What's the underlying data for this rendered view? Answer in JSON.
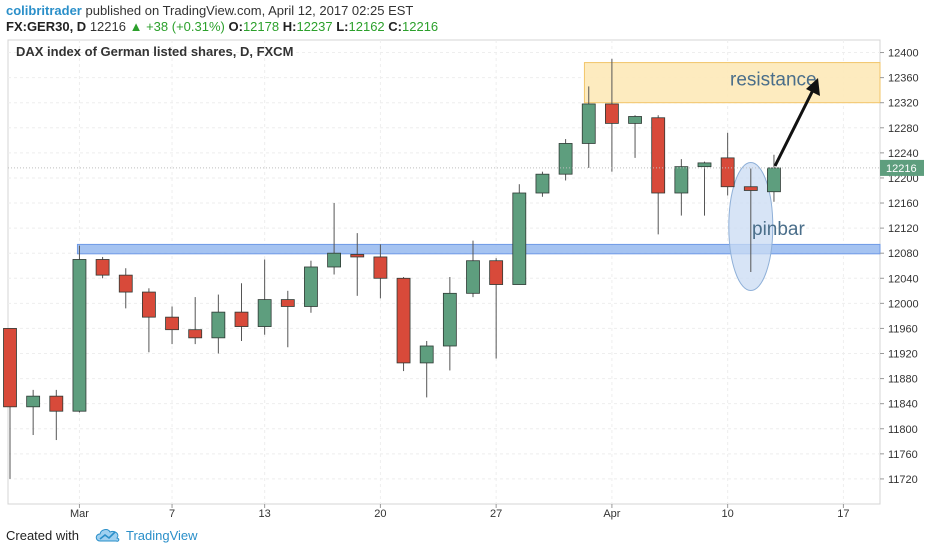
{
  "header": {
    "author": "colibritrader",
    "published": "published on TradingView.com, April 12, 2017 02:25 EST",
    "symbol": "FX:GER30, D",
    "last": "12216",
    "change": "+38 (+0.31%)",
    "o_label": "O:",
    "o_value": "12178",
    "h_label": "H:",
    "h_value": "12237",
    "l_label": "L:",
    "l_value": "12162",
    "c_label": "C:",
    "c_value": "12216"
  },
  "footer": {
    "created_with": "Created with",
    "brand": "TradingView"
  },
  "icons": {
    "change_arrow": "up-triangle-icon",
    "logo": "tradingview-cloud-icon",
    "annotation_arrow": "arrow-icon"
  },
  "colors": {
    "up": "#5e9e7e",
    "down": "#d84a3a",
    "wick": "#555555",
    "resistance_zone": "#fde9b8",
    "support_zone": "#9bbcf0",
    "pinbar_ellipse": "#c9dbf3",
    "price_tag": "#5e9e7e"
  },
  "chart_data": {
    "type": "candlestick",
    "title": "DAX index of German listed shares, D, FXCM",
    "ylim": [
      11680,
      12420
    ],
    "y_ticks": [
      11720,
      11760,
      11800,
      11840,
      11880,
      11920,
      11960,
      12000,
      12040,
      12080,
      12120,
      12160,
      12200,
      12240,
      12280,
      12320,
      12360,
      12400
    ],
    "y_tick_labels": [
      "11720",
      "11760",
      "11800",
      "11840",
      "11880",
      "11920",
      "11960",
      "12000",
      "12040",
      "12080",
      "12120",
      "12160",
      "12200",
      "12240",
      "12280",
      "12320",
      "12360",
      "12400"
    ],
    "x_ticks": [
      {
        "label": "Mar",
        "bar": 3
      },
      {
        "label": "7",
        "bar": 7
      },
      {
        "label": "13",
        "bar": 11
      },
      {
        "label": "20",
        "bar": 16
      },
      {
        "label": "27",
        "bar": 21
      },
      {
        "label": "Apr",
        "bar": 26
      },
      {
        "label": "10",
        "bar": 31
      },
      {
        "label": "17",
        "bar": 36
      }
    ],
    "grid": true,
    "last_price": 12216,
    "last_price_label": "12216",
    "candles": [
      {
        "o": 11960,
        "h": 11960,
        "l": 11720,
        "c": 11835
      },
      {
        "o": 11835,
        "h": 11862,
        "l": 11790,
        "c": 11852
      },
      {
        "o": 11852,
        "h": 11862,
        "l": 11782,
        "c": 11828
      },
      {
        "o": 11828,
        "h": 12092,
        "l": 11826,
        "c": 12070
      },
      {
        "o": 12070,
        "h": 12074,
        "l": 12040,
        "c": 12045
      },
      {
        "o": 12045,
        "h": 12056,
        "l": 11992,
        "c": 12018
      },
      {
        "o": 12018,
        "h": 12024,
        "l": 11922,
        "c": 11978
      },
      {
        "o": 11978,
        "h": 11995,
        "l": 11935,
        "c": 11958
      },
      {
        "o": 11958,
        "h": 12010,
        "l": 11935,
        "c": 11945
      },
      {
        "o": 11945,
        "h": 12014,
        "l": 11920,
        "c": 11986
      },
      {
        "o": 11986,
        "h": 12032,
        "l": 11940,
        "c": 11963
      },
      {
        "o": 11963,
        "h": 12070,
        "l": 11950,
        "c": 12006
      },
      {
        "o": 12006,
        "h": 12020,
        "l": 11930,
        "c": 11995
      },
      {
        "o": 11995,
        "h": 12068,
        "l": 11985,
        "c": 12058
      },
      {
        "o": 12058,
        "h": 12160,
        "l": 12046,
        "c": 12080
      },
      {
        "o": 12078,
        "h": 12112,
        "l": 12012,
        "c": 12074
      },
      {
        "o": 12074,
        "h": 12094,
        "l": 12008,
        "c": 12040
      },
      {
        "o": 12040,
        "h": 12042,
        "l": 11892,
        "c": 11905
      },
      {
        "o": 11905,
        "h": 11940,
        "l": 11850,
        "c": 11932
      },
      {
        "o": 11932,
        "h": 12042,
        "l": 11893,
        "c": 12016
      },
      {
        "o": 12016,
        "h": 12100,
        "l": 12010,
        "c": 12068
      },
      {
        "o": 12068,
        "h": 12072,
        "l": 11912,
        "c": 12030
      },
      {
        "o": 12030,
        "h": 12190,
        "l": 12030,
        "c": 12176
      },
      {
        "o": 12176,
        "h": 12210,
        "l": 12170,
        "c": 12206
      },
      {
        "o": 12206,
        "h": 12262,
        "l": 12196,
        "c": 12255
      },
      {
        "o": 12255,
        "h": 12346,
        "l": 12216,
        "c": 12318
      },
      {
        "o": 12318,
        "h": 12390,
        "l": 12210,
        "c": 12287
      },
      {
        "o": 12287,
        "h": 12300,
        "l": 12232,
        "c": 12298
      },
      {
        "o": 12296,
        "h": 12300,
        "l": 12110,
        "c": 12176
      },
      {
        "o": 12176,
        "h": 12230,
        "l": 12140,
        "c": 12218
      },
      {
        "o": 12218,
        "h": 12226,
        "l": 12140,
        "c": 12224
      },
      {
        "o": 12232,
        "h": 12272,
        "l": 12172,
        "c": 12186
      },
      {
        "o": 12186,
        "h": 12215,
        "l": 12050,
        "c": 12180
      },
      {
        "o": 12178,
        "h": 12237,
        "l": 12162,
        "c": 12216
      }
    ],
    "zones": [
      {
        "name": "resistance",
        "y_from": 12320,
        "y_to": 12384,
        "bar_from": 24.9
      },
      {
        "name": "support",
        "y_from": 12079,
        "y_to": 12094,
        "bar_from": 3
      }
    ],
    "annotations": {
      "resistance_label": "resistance",
      "pinbar_label": "pinbar"
    }
  }
}
